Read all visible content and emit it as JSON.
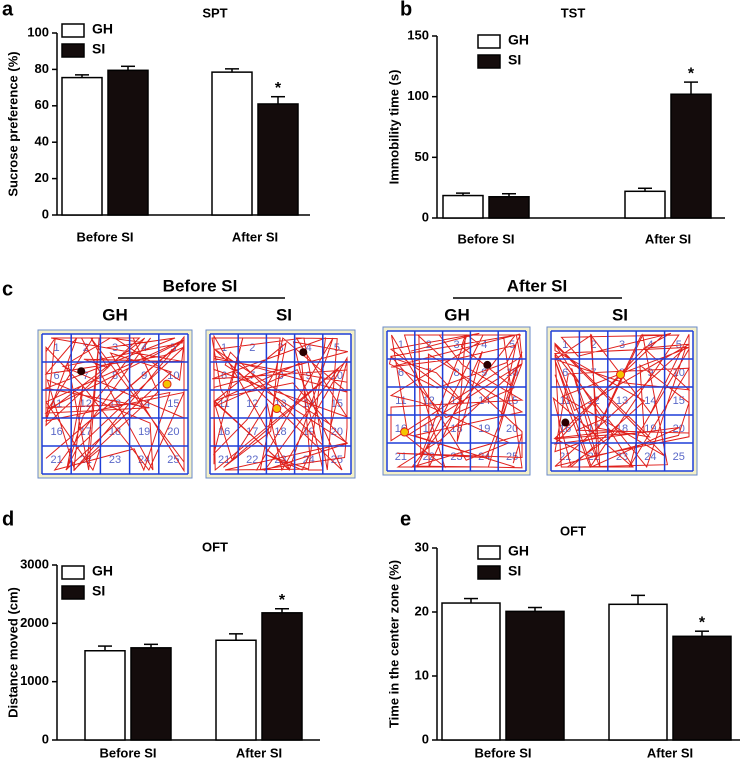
{
  "chart_data": [
    {
      "type": "bar",
      "panel": "a",
      "title": "SPT",
      "y_label": "Sucrose preference (%)",
      "categories": [
        "Before SI",
        "After SI"
      ],
      "ylim": [
        0,
        100
      ],
      "yticks": [
        0,
        20,
        40,
        60,
        80,
        100
      ],
      "series": [
        {
          "name": "GH",
          "color": "#ffffff",
          "values": [
            75.5,
            78.5
          ],
          "errors": [
            1.5,
            1.8
          ]
        },
        {
          "name": "SI",
          "color": "#140c0c",
          "values": [
            79.5,
            61
          ],
          "errors": [
            2.2,
            4
          ],
          "annotations": [
            null,
            "*"
          ]
        }
      ]
    },
    {
      "type": "bar",
      "panel": "b",
      "title": "TST",
      "y_label": "Immobility time (s)",
      "categories": [
        "Before SI",
        "After SI"
      ],
      "ylim": [
        0,
        150
      ],
      "yticks": [
        0,
        50,
        100,
        150
      ],
      "series": [
        {
          "name": "GH",
          "color": "#ffffff",
          "values": [
            18.5,
            22
          ],
          "errors": [
            2,
            2.5
          ]
        },
        {
          "name": "SI",
          "color": "#140c0c",
          "values": [
            17.5,
            102
          ],
          "errors": [
            2.5,
            10
          ],
          "annotations": [
            null,
            "*"
          ]
        }
      ]
    },
    {
      "type": "bar",
      "panel": "d",
      "title": "OFT",
      "y_label": "Distance moved (cm)",
      "categories": [
        "Before SI",
        "After SI"
      ],
      "ylim": [
        0,
        3000
      ],
      "yticks": [
        0,
        1000,
        2000,
        3000
      ],
      "series": [
        {
          "name": "GH",
          "color": "#ffffff",
          "values": [
            1530,
            1710
          ],
          "errors": [
            80,
            110
          ]
        },
        {
          "name": "SI",
          "color": "#140c0c",
          "values": [
            1580,
            2180
          ],
          "errors": [
            60,
            70
          ],
          "annotations": [
            null,
            "*"
          ]
        }
      ]
    },
    {
      "type": "bar",
      "panel": "e",
      "title": "OFT",
      "y_label": "Time in the center zone (%)",
      "categories": [
        "Before SI",
        "After SI"
      ],
      "ylim": [
        0,
        30
      ],
      "yticks": [
        0,
        10,
        20,
        30
      ],
      "series": [
        {
          "name": "GH",
          "color": "#ffffff",
          "values": [
            21.4,
            21.2
          ],
          "errors": [
            0.7,
            1.4
          ]
        },
        {
          "name": "SI",
          "color": "#140c0c",
          "values": [
            20.1,
            16.2
          ],
          "errors": [
            0.6,
            0.8
          ],
          "annotations": [
            null,
            "*"
          ]
        }
      ]
    }
  ],
  "panel_c": {
    "panel": "c",
    "groups": [
      {
        "label": "Before SI",
        "tracks": [
          "GH",
          "SI"
        ]
      },
      {
        "label": "After SI",
        "tracks": [
          "GH",
          "SI"
        ]
      }
    ],
    "zone_numbers": [
      "1",
      "2",
      "3",
      "4",
      "5",
      "6",
      "7",
      "8",
      "9",
      "10",
      "11",
      "12",
      "13",
      "14",
      "15",
      "16",
      "17",
      "18",
      "19",
      "20",
      "21",
      "22",
      "23",
      "24",
      "25"
    ]
  }
}
